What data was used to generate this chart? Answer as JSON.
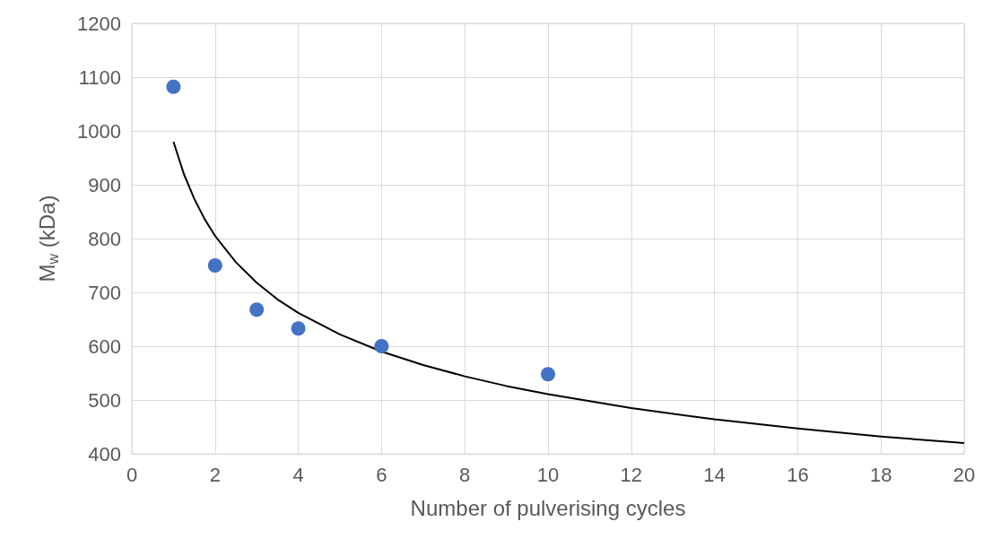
{
  "chart_data": {
    "type": "scatter",
    "xlabel": "Number of pulverising cycles",
    "ylabel": "M$_{w}$ (kDa)",
    "xlim": [
      0,
      20
    ],
    "xticks": [
      0,
      2,
      4,
      6,
      8,
      10,
      12,
      14,
      16,
      18,
      20
    ],
    "ylim": [
      400,
      1200
    ],
    "yticks": [
      400,
      500,
      600,
      700,
      800,
      900,
      1000,
      1100,
      1200
    ],
    "grid": true,
    "marker": "circle",
    "series": [
      {
        "color": "#4472c4",
        "x": [
          1,
          2,
          3,
          4,
          6,
          10
        ],
        "values": [
          1082,
          750,
          668,
          633,
          600,
          548
        ]
      },
      {
        "type": "line",
        "color": "#000000",
        "marker": "none",
        "x": [
          1,
          1.25,
          1.5,
          1.75,
          2,
          2.5,
          3,
          3.5,
          4,
          5,
          6,
          7,
          8,
          9,
          10,
          12,
          14,
          16,
          18,
          20
        ],
        "values": [
          980,
          920,
          874,
          836,
          805,
          756,
          718,
          687,
          662,
          622,
          590,
          565,
          544,
          526,
          511,
          485,
          464,
          447,
          432,
          420
        ]
      }
    ]
  }
}
